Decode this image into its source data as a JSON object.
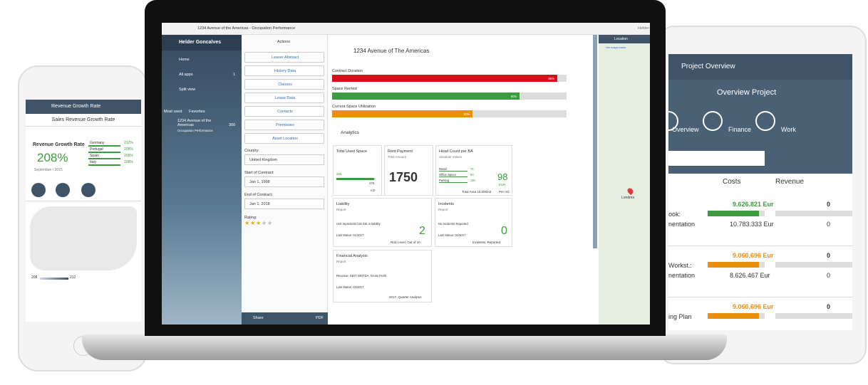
{
  "phone": {
    "header": "Revenue Growth Rate",
    "subheader": "Sales Revenue Growth Rate",
    "kpi_title": "Revenue Growth Rate",
    "kpi_value": "208%",
    "kpi_date": "September / 2015",
    "countries": [
      [
        "Germany",
        "212%"
      ],
      [
        "Portugal",
        "208%"
      ],
      [
        "Spain",
        "208%"
      ],
      [
        "Italy",
        "208%"
      ]
    ],
    "legend": [
      "208",
      "212"
    ]
  },
  "laptop": {
    "topbar": "1234 Avenue of the Americas - Occupation Performance",
    "user_short": "Helder",
    "sidebar": {
      "user": "Helder Goncalves",
      "nav": [
        "Home",
        "All apps",
        "Split view"
      ],
      "all_apps_count": "1",
      "tabs": [
        "Most used",
        "Favorites"
      ],
      "item": "1234 Avenue of the Americas",
      "item_sub": "Occupation Performance",
      "item_count": "300"
    },
    "actions": {
      "title": "Actions",
      "buttons": [
        "Leaser Abstract",
        "History Data",
        "Clauses",
        "Lease Data",
        "Contacts",
        "Premisses",
        "Asset Location"
      ],
      "fields": [
        [
          "Country:",
          "United Kingdom"
        ],
        [
          "Start of Contract:",
          "Jan 1, 1998"
        ],
        [
          "End of Contract:",
          "Jan 1, 2018"
        ]
      ],
      "rating_label": "Rating:",
      "rating": 3,
      "share": "Share",
      "pdf": "PDF"
    },
    "main": {
      "title": "1234 Avenue of The Americas",
      "progress": [
        {
          "label": "Contract Duration",
          "value": 96,
          "value_label": "96%",
          "color": "#d0131a"
        },
        {
          "label": "Space Rented",
          "value": 80,
          "value_label": "80%",
          "color": "#3b9b3e"
        },
        {
          "label": "Current Space Utilization",
          "value": 60,
          "value_label": "60%",
          "color": "#e8900e"
        }
      ],
      "analytics": "Analytics",
      "tiles": {
        "used_space": {
          "title": "Total Used Space",
          "used": "265",
          "total": "275",
          "unit": "m2"
        },
        "rent": {
          "title": "Rent Payment",
          "sub": "Total Amount",
          "value": "1750"
        },
        "headcount": {
          "title": "Head Count per BA",
          "sub": "Absolute Values",
          "rows": [
            [
              "Retail",
              "75"
            ],
            [
              "Office Space",
              "80"
            ],
            [
              "Parking",
              "150"
            ]
          ],
          "value": "98",
          "unit": "EUR",
          "footer": "Total Area 10.000m2",
          "footer_right": "Per m2"
        },
        "liability": {
          "title": "Liability",
          "sub": "Report",
          "text": "Unit represents low risk in liability.",
          "status": "Last Status: 01/2017",
          "value": "2",
          "caption": "Risk Level, Out of 10"
        },
        "incidents": {
          "title": "Incidents",
          "sub": "Report",
          "text": "No Incidents Reported",
          "status": "Last Status: 01/2017",
          "value": "0",
          "caption": "Incidents, Reported"
        },
        "financial": {
          "title": "Financial Analysis",
          "sub": "Report",
          "text": "Revenue, EBIT, EBITDA, Gross Profit",
          "status": "Last Status: 03/2017",
          "caption": "2017, Quarter Analysis"
        }
      }
    },
    "map": {
      "title": "Location",
      "link": "Ver mapa maior",
      "city": "Londres"
    }
  },
  "tablet": {
    "header": "Project Overview",
    "title": "Overview Project",
    "tabs": [
      "Overview",
      "Finance",
      "Work"
    ],
    "columns": [
      "Costs",
      "Revenue"
    ],
    "rows": [
      {
        "name": [
          "ook:",
          "nentation"
        ],
        "cost_top": "9.626.821 Eur",
        "cost_bottom": "10.783.333 Eur",
        "rev_top": "0",
        "rev_bottom": "0",
        "color": "#3b9b3e"
      },
      {
        "name": [
          "Workst.:",
          "nentation"
        ],
        "cost_top": "9.060.696 Eur",
        "cost_bottom": "8.626.467 Eur",
        "rev_top": "0",
        "rev_bottom": "0",
        "color": "#e8900e"
      },
      {
        "name": [
          "ing Plan"
        ],
        "cost_top": "9.060.696 Eur",
        "cost_bottom": "",
        "rev_top": "0",
        "rev_bottom": "",
        "color": "#e8900e"
      }
    ]
  }
}
